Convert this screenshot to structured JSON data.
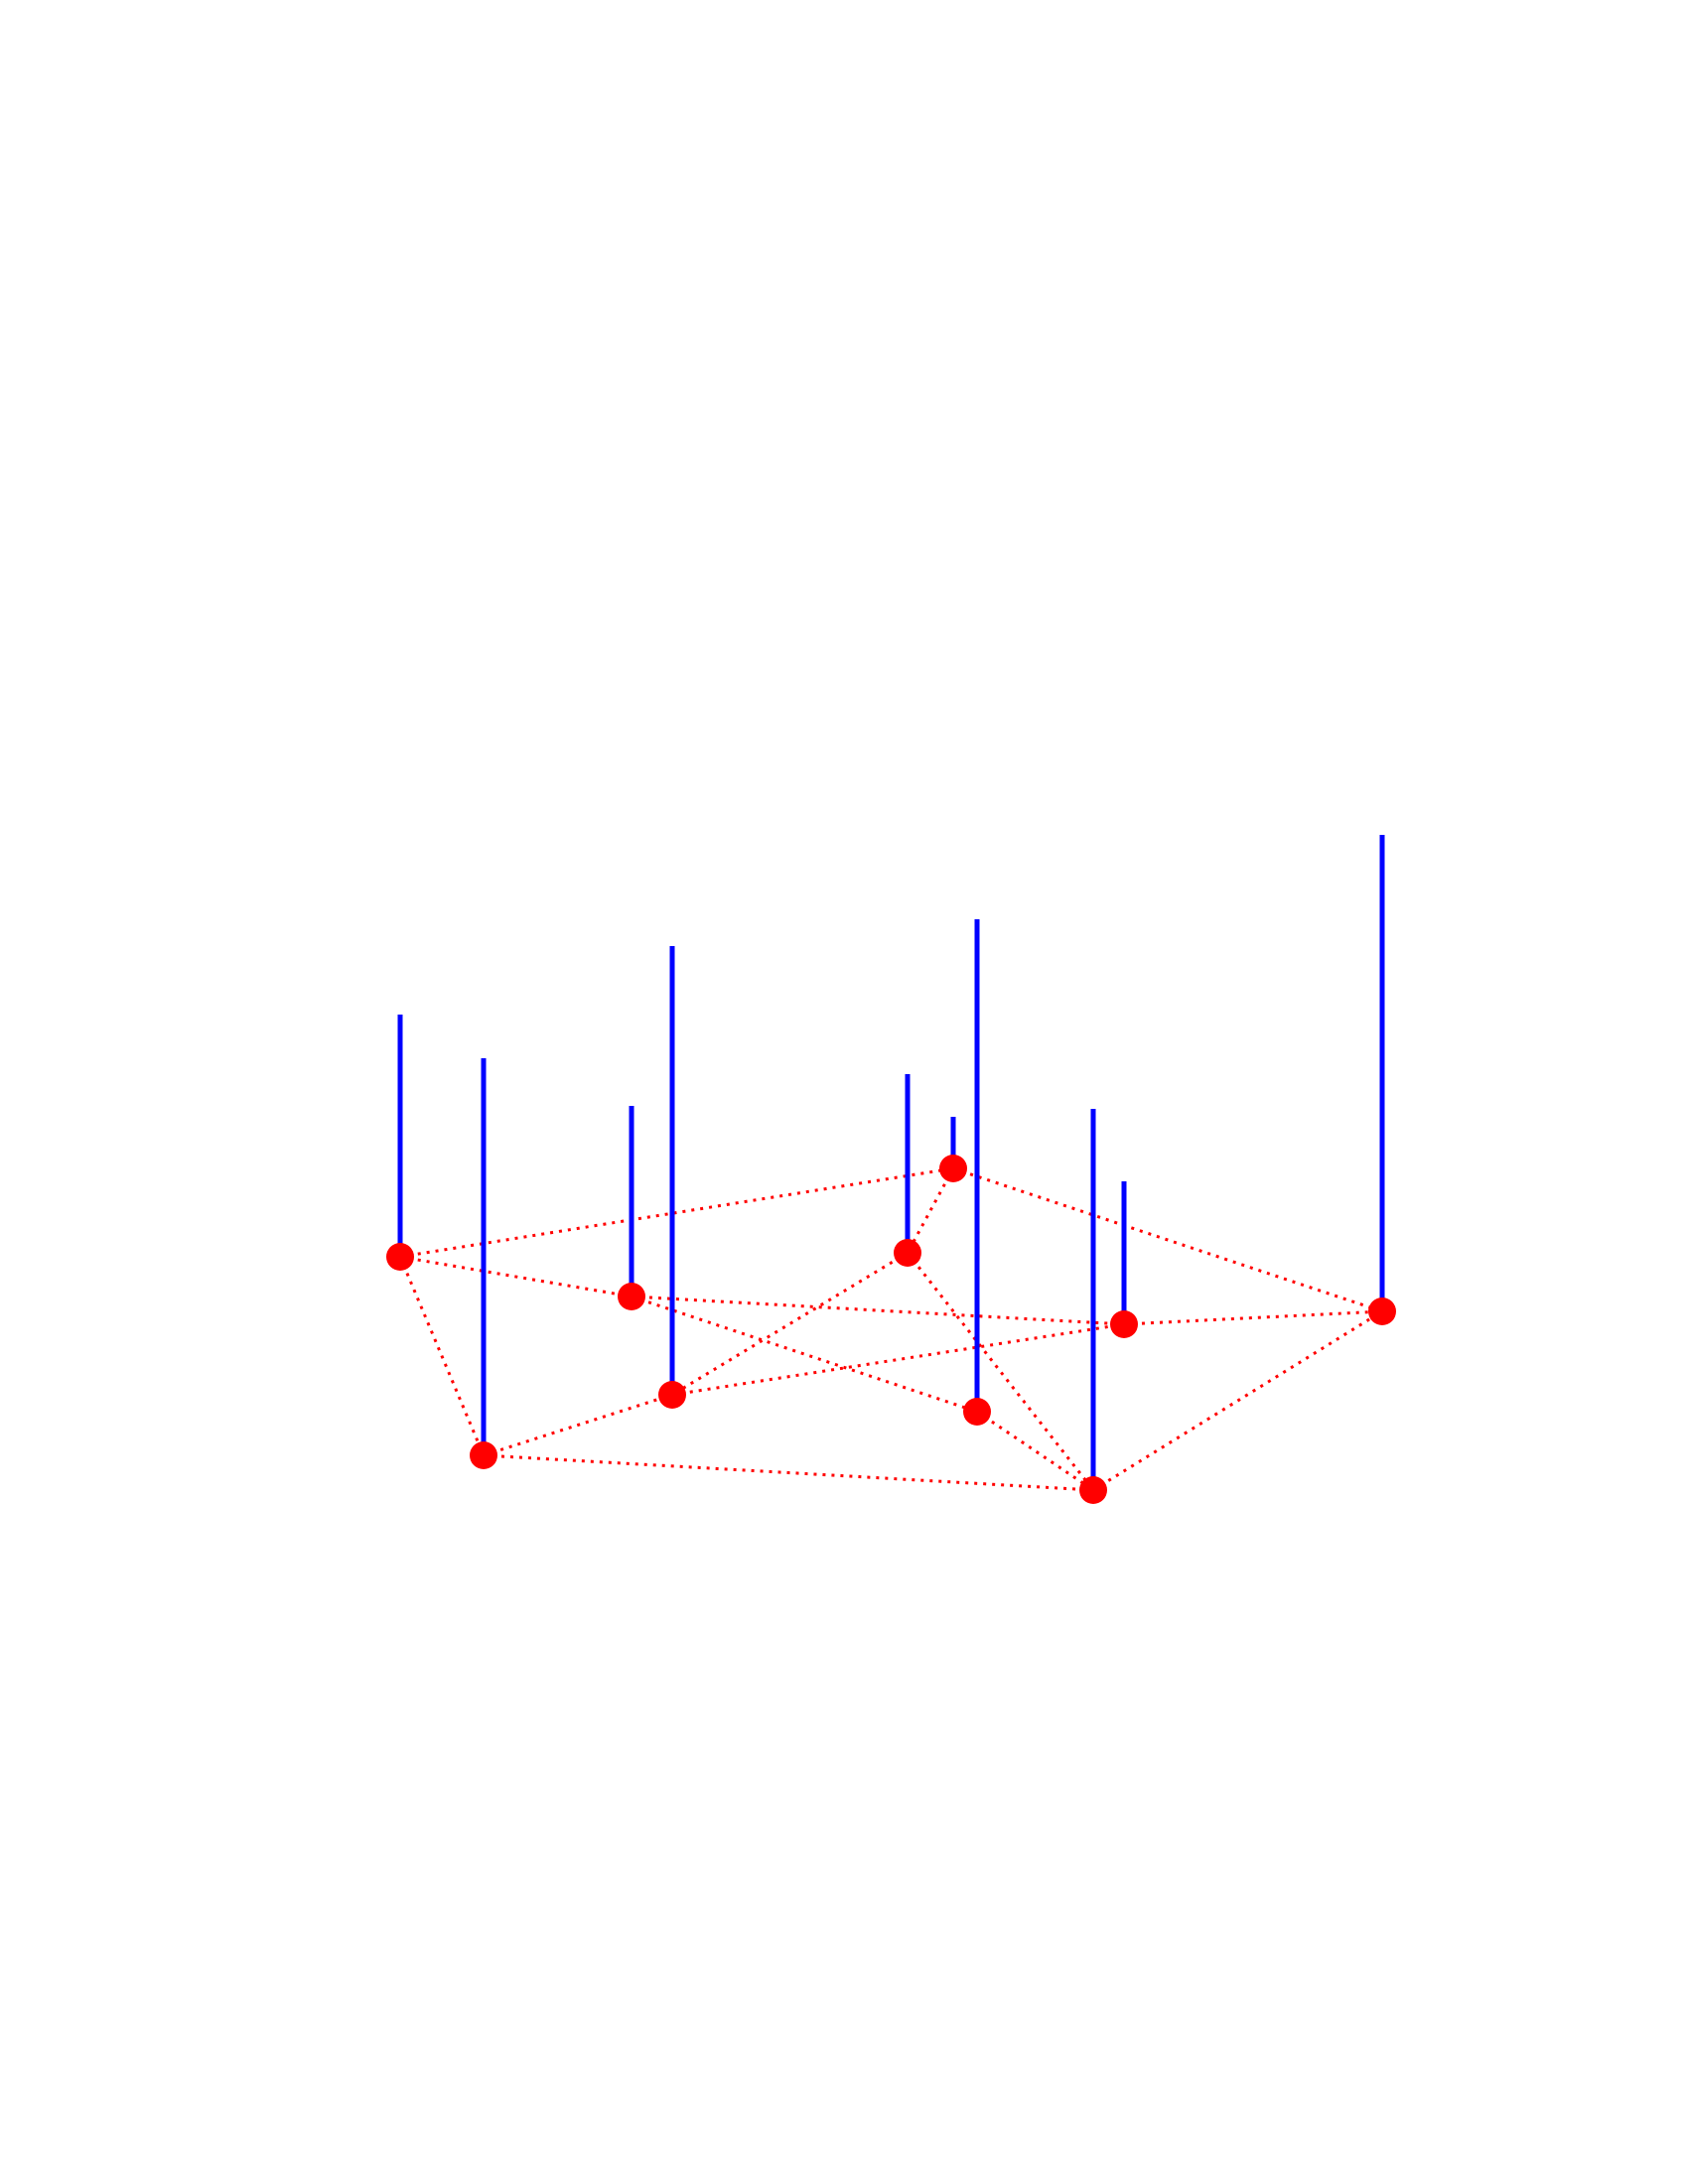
{
  "colors": {
    "background": "#ffffff",
    "stem": "#0000ff",
    "node": "#ff0000",
    "edge": "#ff0000"
  },
  "chart_data": {
    "type": "graph",
    "grid": false,
    "legend": false,
    "nodes": [
      {
        "id": "n1",
        "height": 0.61
      },
      {
        "id": "n2",
        "height": 1.0
      },
      {
        "id": "n3",
        "height": 0.48
      },
      {
        "id": "n4",
        "height": 1.13
      },
      {
        "id": "n5",
        "height": 0.45
      },
      {
        "id": "n6",
        "height": 0.13
      },
      {
        "id": "n7",
        "height": 1.24
      },
      {
        "id": "n8",
        "height": 0.96
      },
      {
        "id": "n9",
        "height": 0.36
      },
      {
        "id": "n10",
        "height": 1.2
      }
    ],
    "edges": [
      [
        "n1",
        "n6"
      ],
      [
        "n1",
        "n2"
      ],
      [
        "n1",
        "n3"
      ],
      [
        "n6",
        "n5"
      ],
      [
        "n6",
        "n10"
      ],
      [
        "n5",
        "n4"
      ],
      [
        "n5",
        "n8"
      ],
      [
        "n3",
        "n9"
      ],
      [
        "n3",
        "n7"
      ],
      [
        "n4",
        "n9"
      ],
      [
        "n2",
        "n4"
      ],
      [
        "n2",
        "n8"
      ],
      [
        "n7",
        "n8"
      ],
      [
        "n8",
        "n10"
      ],
      [
        "n9",
        "n10"
      ]
    ]
  }
}
